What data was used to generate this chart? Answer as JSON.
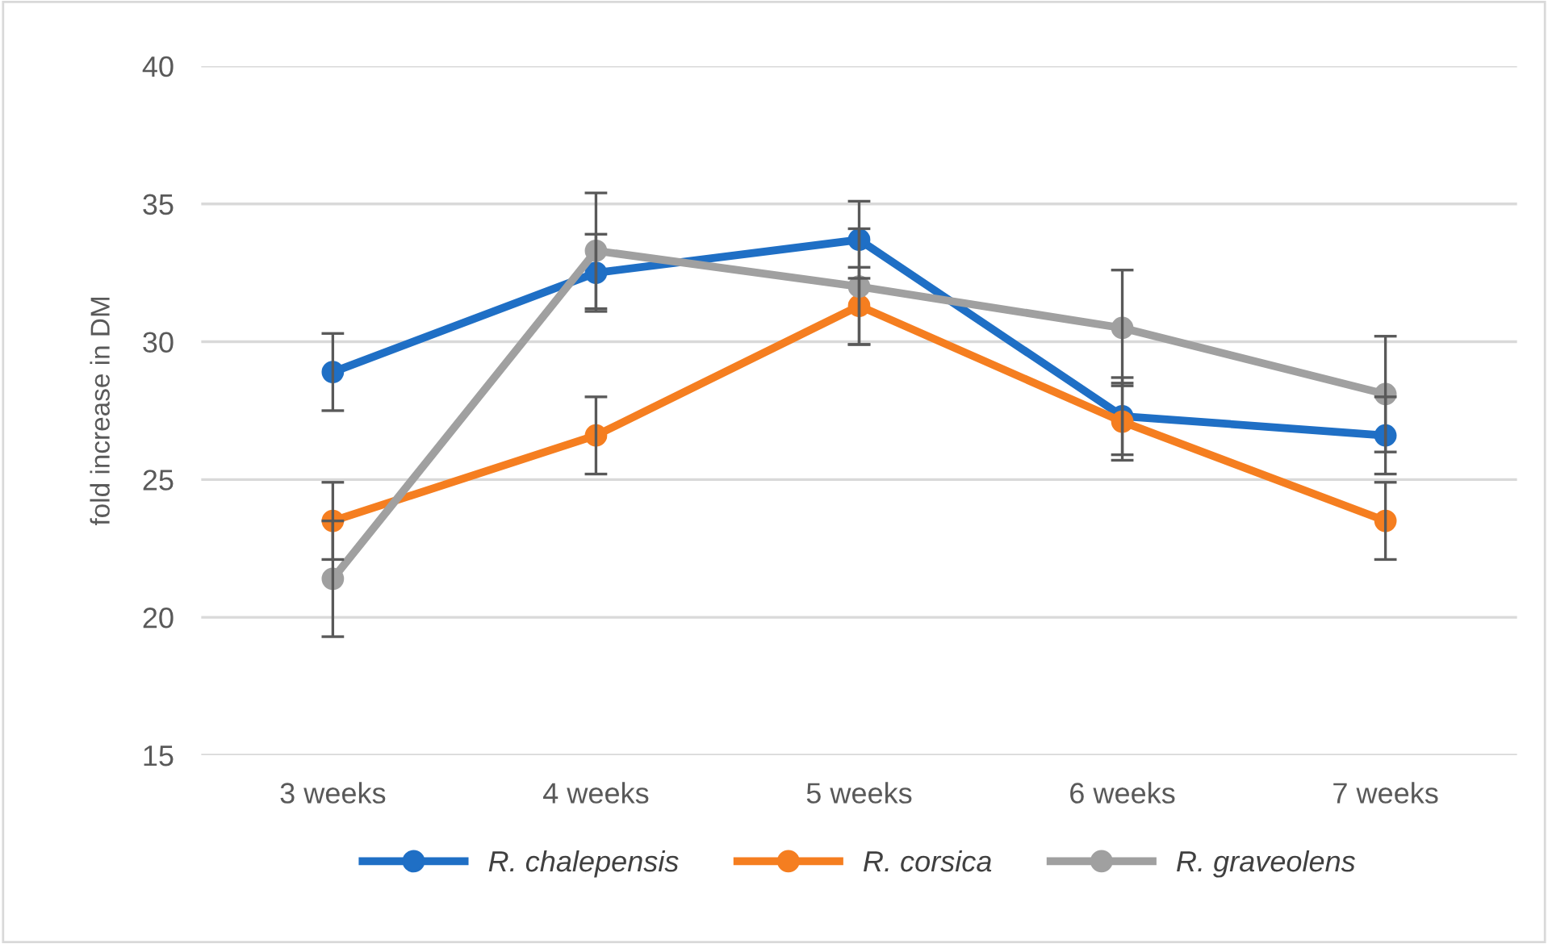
{
  "chart_data": {
    "type": "line",
    "ylabel": "fold increase in DM",
    "categories": [
      "3 weeks",
      "4 weeks",
      "5 weeks",
      "6 weeks",
      "7 weeks"
    ],
    "series": [
      {
        "name": "R. chalepensis",
        "color": "#1f6fc5",
        "values": [
          28.9,
          32.5,
          33.7,
          27.3,
          26.6
        ],
        "errors": [
          1.4,
          1.4,
          1.4,
          1.4,
          1.4
        ]
      },
      {
        "name": "R. corsica",
        "color": "#f57e20",
        "values": [
          23.5,
          26.6,
          31.3,
          27.1,
          23.5
        ],
        "errors": [
          1.4,
          1.4,
          1.4,
          1.4,
          1.4
        ]
      },
      {
        "name": "R. graveolens",
        "color": "#a0a0a0",
        "values": [
          21.4,
          33.3,
          32.0,
          30.5,
          28.1
        ],
        "errors": [
          2.1,
          2.1,
          2.1,
          2.1,
          2.1
        ]
      }
    ],
    "ylim": [
      15,
      40
    ],
    "yticks": [
      15,
      20,
      25,
      30,
      35,
      40
    ],
    "grid": "y",
    "legend": "bottom",
    "marker": "circle",
    "line_style": "solid"
  }
}
